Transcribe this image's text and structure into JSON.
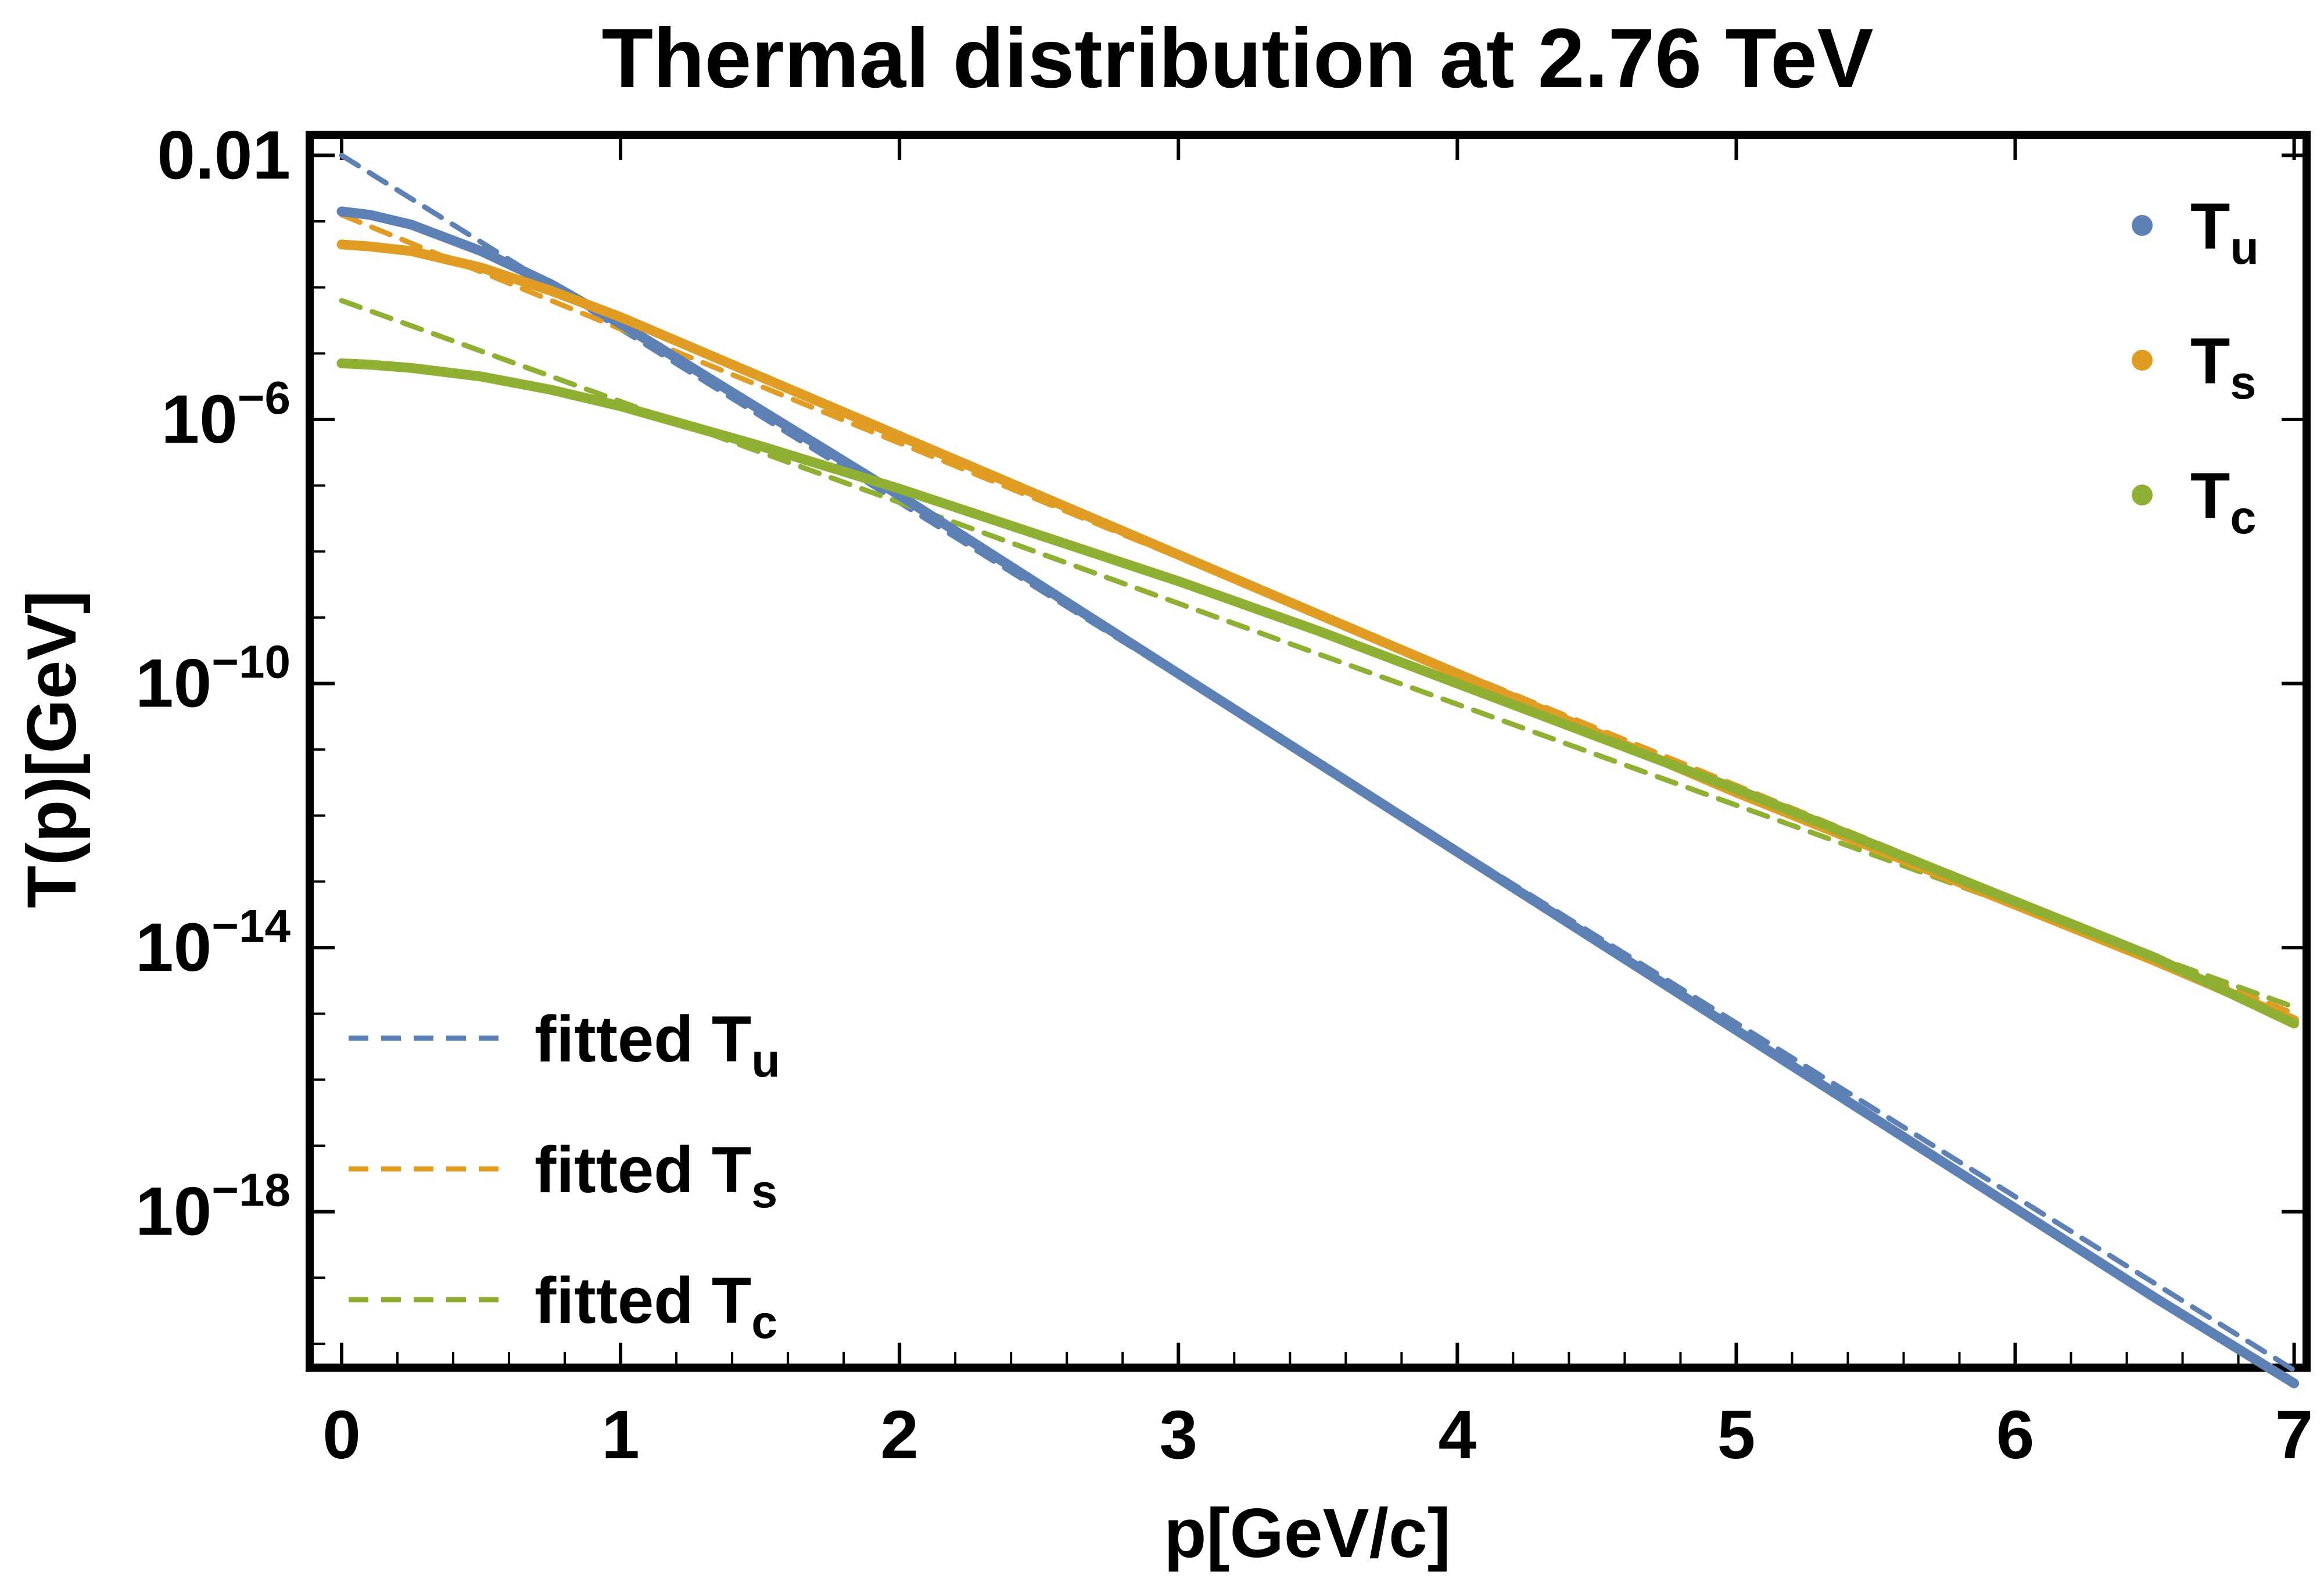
{
  "chart_data": {
    "type": "line",
    "title": "Thermal distribution at 2.76 TeV",
    "xlabel": "p[GeV/c]",
    "ylabel": "T(p)[GeV]",
    "xlim": [
      -0.1,
      7.03
    ],
    "ylog": true,
    "ylim_log10": [
      -20.3,
      -1.75
    ],
    "x_ticks": [
      0,
      1,
      2,
      3,
      4,
      5,
      6,
      7
    ],
    "y_ticks": [
      {
        "log10": -2,
        "base": "0.01",
        "exp": ""
      },
      {
        "log10": -6,
        "base": "10",
        "exp": "−6"
      },
      {
        "log10": -10,
        "base": "10",
        "exp": "−10"
      },
      {
        "log10": -14,
        "base": "10",
        "exp": "−14"
      },
      {
        "log10": -18,
        "base": "10",
        "exp": "−18"
      }
    ],
    "grid": false,
    "series": [
      {
        "name": "T",
        "sub": "u",
        "style": "solid",
        "color": "#5e81b5",
        "x": [
          0,
          0.1,
          0.25,
          0.5,
          0.75,
          1,
          1.5,
          2,
          2.5,
          3,
          3.5,
          4,
          4.5,
          5,
          5.5,
          6,
          6.5,
          7
        ],
        "log10y": [
          -2.85,
          -2.9,
          -3.05,
          -3.45,
          -3.95,
          -4.55,
          -5.85,
          -7.15,
          -8.5,
          -9.85,
          -11.2,
          -12.55,
          -13.9,
          -15.25,
          -16.6,
          -17.95,
          -19.3,
          -20.6
        ]
      },
      {
        "name": "T",
        "sub": "s",
        "style": "solid",
        "color": "#e19c24",
        "x": [
          0,
          0.1,
          0.25,
          0.5,
          0.75,
          1,
          1.5,
          2,
          2.5,
          3,
          3.5,
          4,
          4.5,
          5,
          5.5,
          6,
          6.5,
          7
        ],
        "log10y": [
          -3.35,
          -3.38,
          -3.45,
          -3.7,
          -4.05,
          -4.45,
          -5.35,
          -6.25,
          -7.15,
          -8.05,
          -8.95,
          -9.85,
          -10.75,
          -11.65,
          -12.5,
          -13.35,
          -14.2,
          -15.1
        ]
      },
      {
        "name": "T",
        "sub": "c",
        "style": "solid",
        "color": "#8fb032",
        "x": [
          0,
          0.1,
          0.25,
          0.5,
          0.75,
          1,
          1.5,
          2,
          2.5,
          3,
          3.5,
          4,
          4.5,
          5,
          5.5,
          6,
          6.5,
          7
        ],
        "log10y": [
          -5.15,
          -5.17,
          -5.22,
          -5.35,
          -5.55,
          -5.8,
          -6.4,
          -7.05,
          -7.75,
          -8.45,
          -9.2,
          -10,
          -10.8,
          -11.6,
          -12.45,
          -13.3,
          -14.15,
          -15.15
        ]
      },
      {
        "name": "fitted T",
        "sub": "u",
        "style": "dashed",
        "color": "#5e81b5",
        "x": [
          0,
          7
        ],
        "log10y": [
          -2.0,
          -20.4
        ]
      },
      {
        "name": "fitted T",
        "sub": "s",
        "style": "dashed",
        "color": "#e19c24",
        "x": [
          0,
          7
        ],
        "log10y": [
          -2.9,
          -15.0
        ]
      },
      {
        "name": "fitted T",
        "sub": "c",
        "style": "dashed",
        "color": "#8fb032",
        "x": [
          0,
          7
        ],
        "log10y": [
          -4.2,
          -14.9
        ]
      }
    ],
    "legend": {
      "points": {
        "placement": "top-right"
      },
      "lines": {
        "placement": "bottom-left"
      }
    }
  }
}
